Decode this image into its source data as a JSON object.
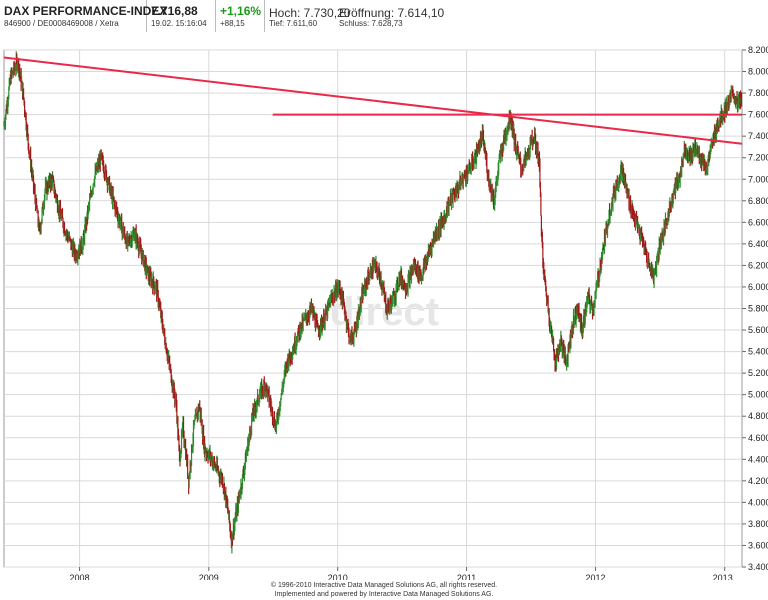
{
  "header": {
    "name": "DAX PERFORMANCE-INDEX",
    "ident": "846900 / DE0008469008 / Xetra",
    "price": "7.716,88",
    "datetime": "19.02. 15:16:04",
    "change_pct": "+1,16%",
    "change_abs": "+88,15",
    "high": "Hoch: 7.730,20",
    "open": "Eröffnung: 7.614,10",
    "low": "Tief: 7.611,60",
    "close": "Schluss: 7.628,73"
  },
  "watermark": "direct",
  "footer": {
    "line1": "© 1996-2010 Interactive Data Managed Solutions AG, all rights reserved.",
    "line2": "Implemented and powered by Interactive Data Managed Solutions AG."
  },
  "colors": {
    "up": "#2e8b2e",
    "down": "#a01818",
    "trend": "#e8294a",
    "grid": "#d9d9d9"
  },
  "chart_data": {
    "type": "line",
    "xlim": [
      "2007-06-01",
      "2013-02-19"
    ],
    "ylim": [
      3400,
      8200
    ],
    "x_ticks": [
      "2008",
      "2009",
      "2010",
      "2011",
      "2012",
      "2013"
    ],
    "y_ticks": [
      3400,
      3600,
      3800,
      4000,
      4200,
      4400,
      4600,
      4800,
      5000,
      5200,
      5400,
      5600,
      5800,
      6000,
      6200,
      6400,
      6600,
      6800,
      7000,
      7200,
      7400,
      7600,
      7800,
      8000,
      8200
    ],
    "grid": true,
    "series": [
      {
        "points": [
          [
            "2007-06-01",
            7500
          ],
          [
            "2007-06-20",
            7950
          ],
          [
            "2007-07-10",
            8100
          ],
          [
            "2007-07-25",
            7800
          ],
          [
            "2007-08-10",
            7300
          ],
          [
            "2007-08-25",
            6900
          ],
          [
            "2007-09-10",
            6500
          ],
          [
            "2007-09-25",
            6900
          ],
          [
            "2007-10-15",
            7000
          ],
          [
            "2007-11-05",
            6700
          ],
          [
            "2007-11-25",
            6500
          ],
          [
            "2007-12-20",
            6300
          ],
          [
            "2008-01-10",
            6400
          ],
          [
            "2008-01-25",
            6700
          ],
          [
            "2008-02-10",
            7000
          ],
          [
            "2008-03-01",
            7200
          ],
          [
            "2008-03-20",
            7000
          ],
          [
            "2008-04-05",
            6800
          ],
          [
            "2008-04-25",
            6600
          ],
          [
            "2008-05-15",
            6400
          ],
          [
            "2008-06-05",
            6500
          ],
          [
            "2008-06-25",
            6300
          ],
          [
            "2008-07-15",
            6100
          ],
          [
            "2008-08-05",
            6000
          ],
          [
            "2008-08-25",
            5600
          ],
          [
            "2008-09-15",
            5200
          ],
          [
            "2008-10-01",
            4900
          ],
          [
            "2008-10-10",
            4400
          ],
          [
            "2008-10-20",
            4700
          ],
          [
            "2008-11-05",
            4200
          ],
          [
            "2008-11-20",
            4700
          ],
          [
            "2008-12-05",
            4900
          ],
          [
            "2008-12-20",
            4500
          ],
          [
            "2009-01-10",
            4400
          ],
          [
            "2009-01-25",
            4300
          ],
          [
            "2009-02-10",
            4200
          ],
          [
            "2009-02-25",
            3900
          ],
          [
            "2009-03-06",
            3650
          ],
          [
            "2009-03-20",
            3900
          ],
          [
            "2009-04-05",
            4200
          ],
          [
            "2009-04-20",
            4500
          ],
          [
            "2009-05-05",
            4800
          ],
          [
            "2009-05-25",
            5000
          ],
          [
            "2009-06-10",
            5100
          ],
          [
            "2009-06-25",
            4900
          ],
          [
            "2009-07-10",
            4700
          ],
          [
            "2009-07-25",
            5000
          ],
          [
            "2009-08-10",
            5300
          ],
          [
            "2009-08-25",
            5400
          ],
          [
            "2009-09-15",
            5600
          ],
          [
            "2009-10-01",
            5700
          ],
          [
            "2009-10-20",
            5800
          ],
          [
            "2009-11-05",
            5600
          ],
          [
            "2009-11-25",
            5700
          ],
          [
            "2009-12-15",
            5900
          ],
          [
            "2010-01-05",
            6000
          ],
          [
            "2010-01-20",
            5800
          ],
          [
            "2010-02-05",
            5500
          ],
          [
            "2010-02-20",
            5600
          ],
          [
            "2010-03-10",
            5900
          ],
          [
            "2010-03-30",
            6100
          ],
          [
            "2010-04-15",
            6200
          ],
          [
            "2010-05-01",
            6100
          ],
          [
            "2010-05-20",
            5800
          ],
          [
            "2010-06-10",
            5900
          ],
          [
            "2010-06-25",
            6100
          ],
          [
            "2010-07-15",
            6000
          ],
          [
            "2010-08-05",
            6200
          ],
          [
            "2010-08-25",
            6100
          ],
          [
            "2010-09-15",
            6300
          ],
          [
            "2010-10-05",
            6500
          ],
          [
            "2010-10-25",
            6600
          ],
          [
            "2010-11-15",
            6800
          ],
          [
            "2010-12-05",
            6900
          ],
          [
            "2010-12-20",
            7000
          ],
          [
            "2011-01-10",
            7100
          ],
          [
            "2011-01-25",
            7200
          ],
          [
            "2011-02-15",
            7400
          ],
          [
            "2011-03-05",
            7000
          ],
          [
            "2011-03-20",
            6800
          ],
          [
            "2011-04-05",
            7200
          ],
          [
            "2011-04-20",
            7400
          ],
          [
            "2011-05-05",
            7600
          ],
          [
            "2011-05-20",
            7300
          ],
          [
            "2011-06-05",
            7100
          ],
          [
            "2011-06-20",
            7200
          ],
          [
            "2011-07-10",
            7400
          ],
          [
            "2011-07-25",
            7200
          ],
          [
            "2011-08-05",
            6200
          ],
          [
            "2011-08-20",
            5800
          ],
          [
            "2011-09-10",
            5300
          ],
          [
            "2011-09-25",
            5500
          ],
          [
            "2011-10-10",
            5300
          ],
          [
            "2011-10-25",
            5600
          ],
          [
            "2011-11-10",
            5800
          ],
          [
            "2011-11-25",
            5600
          ],
          [
            "2011-12-10",
            5900
          ],
          [
            "2011-12-25",
            5800
          ],
          [
            "2012-01-10",
            6100
          ],
          [
            "2012-01-25",
            6400
          ],
          [
            "2012-02-10",
            6700
          ],
          [
            "2012-02-25",
            6900
          ],
          [
            "2012-03-15",
            7100
          ],
          [
            "2012-04-05",
            6800
          ],
          [
            "2012-04-25",
            6600
          ],
          [
            "2012-05-15",
            6400
          ],
          [
            "2012-06-01",
            6200
          ],
          [
            "2012-06-15",
            6100
          ],
          [
            "2012-07-01",
            6400
          ],
          [
            "2012-07-20",
            6600
          ],
          [
            "2012-08-10",
            6900
          ],
          [
            "2012-08-25",
            7000
          ],
          [
            "2012-09-10",
            7300
          ],
          [
            "2012-09-25",
            7200
          ],
          [
            "2012-10-10",
            7300
          ],
          [
            "2012-10-25",
            7200
          ],
          [
            "2012-11-10",
            7100
          ],
          [
            "2012-11-25",
            7300
          ],
          [
            "2012-12-10",
            7500
          ],
          [
            "2012-12-25",
            7600
          ],
          [
            "2013-01-10",
            7700
          ],
          [
            "2013-01-25",
            7800
          ],
          [
            "2013-02-05",
            7700
          ],
          [
            "2013-02-19",
            7717
          ]
        ]
      }
    ],
    "trendlines": [
      {
        "from": [
          "2007-06-01",
          8130
        ],
        "to": [
          "2013-02-19",
          7330
        ]
      },
      {
        "from": [
          "2009-07-01",
          7600
        ],
        "to": [
          "2013-02-19",
          7600
        ]
      }
    ]
  }
}
